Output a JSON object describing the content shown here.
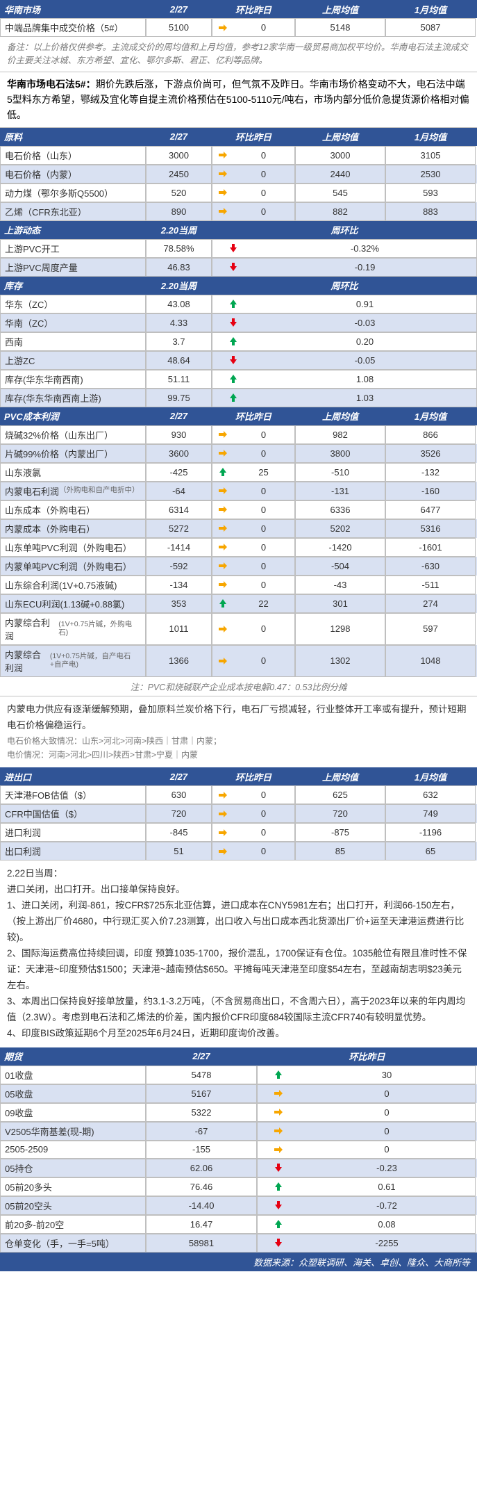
{
  "colors": {
    "header_bg": "#305496",
    "alt_bg": "#d9e1f2",
    "up": "#00a651",
    "down": "#e60012",
    "flat": "#f7a600"
  },
  "col_headers": {
    "date": "2/27",
    "chg": "环比昨日",
    "week": "上周均值",
    "month": "1月均值",
    "week_cur": "2.20当周",
    "wow": "周环比"
  },
  "huanan": {
    "title": "华南市场",
    "row": {
      "label": "中端品牌集中成交价格（5#）",
      "val": "5100",
      "arrow": "flat",
      "chg": "0",
      "week": "5148",
      "month": "5087"
    },
    "note": "备注：以上价格仅供参考。主流成交价的周均值和上月均值，参考12家华南一级贸易商加权平均价。华南电石法主流成交价主要关注冰城、东方希望、宜化、鄂尔多斯、君正、亿利等品牌。",
    "summary_title": "华南市场电石法5#：",
    "summary_body": "期价先跌后涨，下游点价尚可，但气氛不及昨日。华南市场价格变动不大，电石法中端5型料东方希望，鄂绒及宜化等自提主流价格预估在5100-5110元/吨右，市场内部分低价急提货源价格相对偏低。"
  },
  "yuanliao": {
    "title": "原料",
    "rows": [
      {
        "label": "电石价格（山东）",
        "val": "3000",
        "arrow": "flat",
        "chg": "0",
        "week": "3000",
        "month": "3105"
      },
      {
        "label": "电石价格（内蒙）",
        "val": "2450",
        "arrow": "flat",
        "chg": "0",
        "week": "2440",
        "month": "2530"
      },
      {
        "label": "动力煤（鄂尔多斯Q5500）",
        "val": "520",
        "arrow": "flat",
        "chg": "0",
        "week": "545",
        "month": "593"
      },
      {
        "label": "乙烯（CFR东北亚）",
        "val": "890",
        "arrow": "flat",
        "chg": "0",
        "week": "882",
        "month": "883"
      }
    ]
  },
  "shangyou": {
    "title": "上游动态",
    "rows": [
      {
        "label": "上游PVC开工",
        "val": "78.58%",
        "arrow": "down",
        "chg": "-0.32%"
      },
      {
        "label": "上游PVC周度产量",
        "val": "46.83",
        "arrow": "down",
        "chg": "-0.19"
      }
    ]
  },
  "kucun": {
    "title": "库存",
    "rows": [
      {
        "label": "华东（ZC）",
        "val": "43.08",
        "arrow": "up",
        "chg": "0.91"
      },
      {
        "label": "华南（ZC）",
        "val": "4.33",
        "arrow": "down",
        "chg": "-0.03"
      },
      {
        "label": "西南",
        "val": "3.7",
        "arrow": "up",
        "chg": "0.20"
      },
      {
        "label": "上游ZC",
        "val": "48.64",
        "arrow": "down",
        "chg": "-0.05"
      },
      {
        "label": "库存(华东华南西南)",
        "val": "51.11",
        "arrow": "up",
        "chg": "1.08"
      },
      {
        "label": "库存(华东华南西南上游)",
        "val": "99.75",
        "arrow": "up",
        "chg": "1.03"
      }
    ]
  },
  "pvc_cost": {
    "title": "PVC成本利润",
    "rows": [
      {
        "label": "烧碱32%价格（山东出厂）",
        "val": "930",
        "arrow": "flat",
        "chg": "0",
        "week": "982",
        "month": "866",
        "alt": false
      },
      {
        "label": "片碱99%价格（内蒙出厂）",
        "val": "3600",
        "arrow": "flat",
        "chg": "0",
        "week": "3800",
        "month": "3526",
        "alt": true
      },
      {
        "label": "山东液氯",
        "val": "-425",
        "arrow": "up",
        "chg": "25",
        "week": "-510",
        "month": "-132",
        "alt": false
      },
      {
        "label": "内蒙电石利润",
        "sub": "（外购电和自产电折中）",
        "val": "-64",
        "arrow": "flat",
        "chg": "0",
        "week": "-131",
        "month": "-160",
        "alt": true
      },
      {
        "label": "山东成本（外购电石）",
        "val": "6314",
        "arrow": "flat",
        "chg": "0",
        "week": "6336",
        "month": "6477",
        "alt": false
      },
      {
        "label": "内蒙成本（外购电石）",
        "val": "5272",
        "arrow": "flat",
        "chg": "0",
        "week": "5202",
        "month": "5316",
        "alt": true
      },
      {
        "label": "山东单吨PVC利润（外购电石）",
        "val": "-1414",
        "arrow": "flat",
        "chg": "0",
        "week": "-1420",
        "month": "-1601",
        "alt": false
      },
      {
        "label": "内蒙单吨PVC利润（外购电石）",
        "val": "-592",
        "arrow": "flat",
        "chg": "0",
        "week": "-504",
        "month": "-630",
        "alt": true
      },
      {
        "label": "山东综合利润(1V+0.75液碱)",
        "val": "-134",
        "arrow": "flat",
        "chg": "0",
        "week": "-43",
        "month": "-511",
        "alt": false
      },
      {
        "label": "山东ECU利润(1.13碱+0.88氯)",
        "val": "353",
        "arrow": "up",
        "chg": "22",
        "week": "301",
        "month": "274",
        "alt": true
      },
      {
        "label": "内蒙综合利润",
        "sub": "(1V+0.75片碱，外购电石)",
        "val": "1011",
        "arrow": "flat",
        "chg": "0",
        "week": "1298",
        "month": "597",
        "alt": false
      },
      {
        "label": "内蒙综合利润",
        "sub": "(1V+0.75片碱，自产电石+自产电)",
        "val": "1366",
        "arrow": "flat",
        "chg": "0",
        "week": "1302",
        "month": "1048",
        "alt": true
      }
    ],
    "foot": "注：PVC和烧碱联产企业成本按电解0.47：0.53比例分摊"
  },
  "analysis1": {
    "main": "内蒙电力供应有逐渐缓解预期，叠加原料兰炭价格下行，电石厂亏损减轻，行业整体开工率或有提升，预计短期电石价格偏稳运行。",
    "line2": "电石价格大致情况：山东>河北>河南>陕西｜甘肃｜内蒙；",
    "line3": "电价情况：河南>河北>四川>陕西>甘肃>宁夏｜内蒙"
  },
  "import_export": {
    "title": "进出口",
    "rows": [
      {
        "label": "天津港FOB估值（$）",
        "val": "630",
        "arrow": "flat",
        "chg": "0",
        "week": "625",
        "month": "632"
      },
      {
        "label": "CFR中国估值（$）",
        "val": "720",
        "arrow": "flat",
        "chg": "0",
        "week": "720",
        "month": "749"
      },
      {
        "label": "进口利润",
        "val": "-845",
        "arrow": "flat",
        "chg": "0",
        "week": "-875",
        "month": "-1196"
      },
      {
        "label": "出口利润",
        "val": "51",
        "arrow": "flat",
        "chg": "0",
        "week": "85",
        "month": "65"
      }
    ]
  },
  "analysis2": {
    "title": "2.22日当周：",
    "intro": "    进口关闭，出口打开。出口接单保持良好。",
    "p1": "1、进口关闭，利润-861，按CFR$725东北亚估算，进口成本在CNY5981左右；出口打开，利润66-150左右，（按上游出厂价4680，中行现汇买入价7.23测算，出口收入与出口成本西北货源出厂价+运至天津港运费进行比较)。",
    "p2": "2、国际海运费高位持续回调，印度 预算1035-1700，报价混乱，1700保证有仓位。1035舱位有限且准时性不保证：天津港~印度预估$1500；天津港~越南预估$650。平摊每吨天津港至印度$54左右，至越南胡志明$23美元左右。",
    "p3": "3、本周出口保持良好接单放量，约3.1-3.2万吨，（不含贸易商出口，不含周六日），高于2023年以来的年内周均值（2.3W）。考虑到电石法和乙烯法的价差，国内报价CFR印度684较国际主流CFR740有较明显优势。",
    "p4": "4、印度BIS政策延期6个月至2025年6月24日，近期印度询价改善。"
  },
  "futures": {
    "title": "期货",
    "rows": [
      {
        "label": "01收盘",
        "val": "5478",
        "arrow": "up",
        "chg": "30"
      },
      {
        "label": "05收盘",
        "val": "5167",
        "arrow": "flat",
        "chg": "0"
      },
      {
        "label": "09收盘",
        "val": "5322",
        "arrow": "flat",
        "chg": "0"
      },
      {
        "label": "V2505华南基差(现-期)",
        "val": "-67",
        "arrow": "flat",
        "chg": "0"
      },
      {
        "label": "2505-2509",
        "val": "-155",
        "arrow": "flat",
        "chg": "0"
      },
      {
        "label": "05持仓",
        "val": "62.06",
        "arrow": "down",
        "chg": "-0.23"
      },
      {
        "label": "05前20多头",
        "val": "76.46",
        "arrow": "up",
        "chg": "0.61"
      },
      {
        "label": "05前20空头",
        "val": "-14.40",
        "arrow": "down",
        "chg": "-0.72"
      },
      {
        "label": "前20多-前20空",
        "val": "16.47",
        "arrow": "up",
        "chg": "0.08"
      },
      {
        "label": "仓单变化（手，一手=5吨）",
        "val": "58981",
        "arrow": "down",
        "chg": "-2255"
      }
    ]
  },
  "source": "数据来源：众塑联调研、海关、卓创、隆众、大商所等"
}
